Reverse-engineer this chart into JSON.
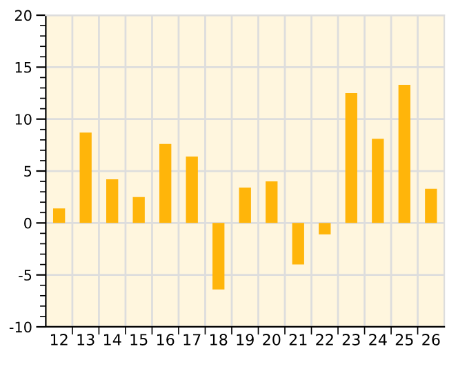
{
  "chart_data": {
    "type": "bar",
    "categories": [
      "12",
      "13",
      "14",
      "15",
      "16",
      "17",
      "18",
      "19",
      "20",
      "21",
      "22",
      "23",
      "24",
      "25",
      "26"
    ],
    "values": [
      1.4,
      8.7,
      4.2,
      2.5,
      7.6,
      6.4,
      -6.4,
      3.4,
      4.0,
      -4.0,
      -1.1,
      12.5,
      8.1,
      13.3,
      3.3
    ],
    "color": "#ffb50a",
    "ylim": [
      -10,
      20
    ],
    "yticks": [
      -10,
      -5,
      0,
      5,
      10,
      15,
      20
    ],
    "grid": true
  }
}
